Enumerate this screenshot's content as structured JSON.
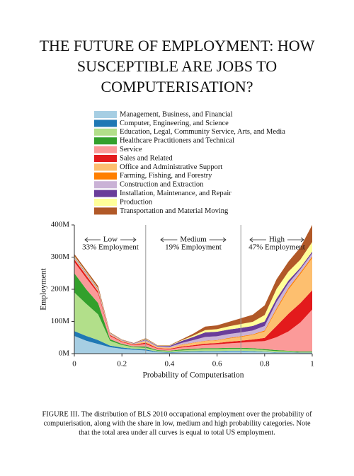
{
  "chart_data": {
    "type": "stacked_area",
    "title": [
      "THE FUTURE OF EMPLOYMENT: HOW",
      "SUSCEPTIBLE ARE JOBS TO",
      "COMPUTERISATION?"
    ],
    "x_label": "Probability of Computerisation",
    "y_label": "Employment",
    "x": [
      0,
      0.05,
      0.1,
      0.15,
      0.2,
      0.25,
      0.3,
      0.35,
      0.4,
      0.45,
      0.5,
      0.55,
      0.6,
      0.65,
      0.7,
      0.75,
      0.8,
      0.85,
      0.9,
      0.95,
      1
    ],
    "xlim": [
      0,
      1
    ],
    "xticks": [
      0,
      0.2,
      0.4,
      0.6,
      0.8,
      1
    ],
    "ylim": [
      0,
      400
    ],
    "yticks": [
      {
        "value": 0,
        "label": "0M"
      },
      {
        "value": 100,
        "label": "100M"
      },
      {
        "value": 200,
        "label": "200M"
      },
      {
        "value": 300,
        "label": "300M"
      },
      {
        "value": 400,
        "label": "400M"
      }
    ],
    "dividers": [
      0.3,
      0.7
    ],
    "annotations": [
      {
        "label": "Low",
        "sub": "33% Employment"
      },
      {
        "label": "Medium",
        "sub": "19% Employment"
      },
      {
        "label": "High",
        "sub": "47% Employment"
      }
    ],
    "series": [
      {
        "name": "Management, Business, and Financial",
        "color": "#a6cee3",
        "values": [
          55,
          40,
          30,
          20,
          15,
          12,
          10,
          4,
          3,
          4,
          5,
          6,
          6,
          7,
          7,
          6,
          5,
          3,
          3,
          2,
          2
        ]
      },
      {
        "name": "Computer, Engineering, and Science",
        "color": "#1f78b4",
        "values": [
          15,
          15,
          12,
          5,
          4,
          3,
          3,
          2,
          1,
          2,
          2,
          2,
          2,
          2,
          2,
          2,
          1,
          1,
          1,
          1,
          1
        ]
      },
      {
        "name": "Education, Legal, Community Service, Arts, and Media",
        "color": "#b2df8a",
        "values": [
          120,
          100,
          80,
          15,
          8,
          5,
          5,
          3,
          3,
          4,
          5,
          6,
          6,
          6,
          6,
          6,
          5,
          4,
          3,
          2,
          2
        ]
      },
      {
        "name": "Healthcare Practitioners and Technical",
        "color": "#33a02c",
        "values": [
          60,
          45,
          35,
          5,
          3,
          2,
          4,
          2,
          2,
          3,
          3,
          3,
          3,
          3,
          3,
          3,
          3,
          3,
          2,
          2,
          2
        ]
      },
      {
        "name": "Service",
        "color": "#fb9a99",
        "values": [
          35,
          35,
          30,
          10,
          6,
          4,
          8,
          4,
          4,
          6,
          8,
          10,
          12,
          14,
          16,
          20,
          25,
          40,
          60,
          90,
          130
        ]
      },
      {
        "name": "Sales and Related",
        "color": "#e31a1c",
        "values": [
          8,
          8,
          6,
          3,
          2,
          2,
          4,
          2,
          2,
          3,
          3,
          4,
          4,
          5,
          6,
          7,
          10,
          35,
          55,
          60,
          60
        ]
      },
      {
        "name": "Office and Administrative Support",
        "color": "#fdbf6f",
        "values": [
          3,
          3,
          3,
          2,
          2,
          2,
          5,
          3,
          3,
          5,
          7,
          8,
          8,
          10,
          12,
          14,
          20,
          50,
          75,
          90,
          100
        ]
      },
      {
        "name": "Farming, Fishing, and Forestry",
        "color": "#ff7f00",
        "values": [
          0,
          0,
          0,
          0,
          0,
          0,
          0,
          0,
          0,
          1,
          1,
          1,
          1,
          2,
          2,
          2,
          3,
          5,
          5,
          5,
          5
        ]
      },
      {
        "name": "Construction and Extraction",
        "color": "#cab2d6",
        "values": [
          2,
          3,
          2,
          2,
          1,
          1,
          3,
          2,
          3,
          5,
          8,
          12,
          12,
          12,
          12,
          12,
          14,
          20,
          15,
          10,
          10
        ]
      },
      {
        "name": "Installation, Maintenance, and Repair",
        "color": "#6a3d9a",
        "values": [
          2,
          2,
          2,
          1,
          1,
          1,
          2,
          2,
          3,
          6,
          10,
          14,
          14,
          14,
          14,
          14,
          14,
          10,
          8,
          5,
          5
        ]
      },
      {
        "name": "Production",
        "color": "#ffff99",
        "values": [
          3,
          3,
          3,
          1,
          1,
          0,
          2,
          1,
          1,
          2,
          4,
          7,
          8,
          10,
          12,
          13,
          20,
          30,
          28,
          25,
          30
        ]
      },
      {
        "name": "Transportation and Material Moving",
        "color": "#b15928",
        "values": [
          7,
          6,
          7,
          2,
          1,
          1,
          2,
          1,
          1,
          3,
          6,
          11,
          12,
          14,
          18,
          22,
          30,
          30,
          31,
          38,
          53
        ]
      }
    ],
    "caption": [
      "FIGURE III. The distribution of BLS 2010 occupational employment over the probability of",
      "computerisation, along with the share in low, medium and high probability categories. Note",
      "that the total area under all curves is equal to total US employment."
    ]
  }
}
